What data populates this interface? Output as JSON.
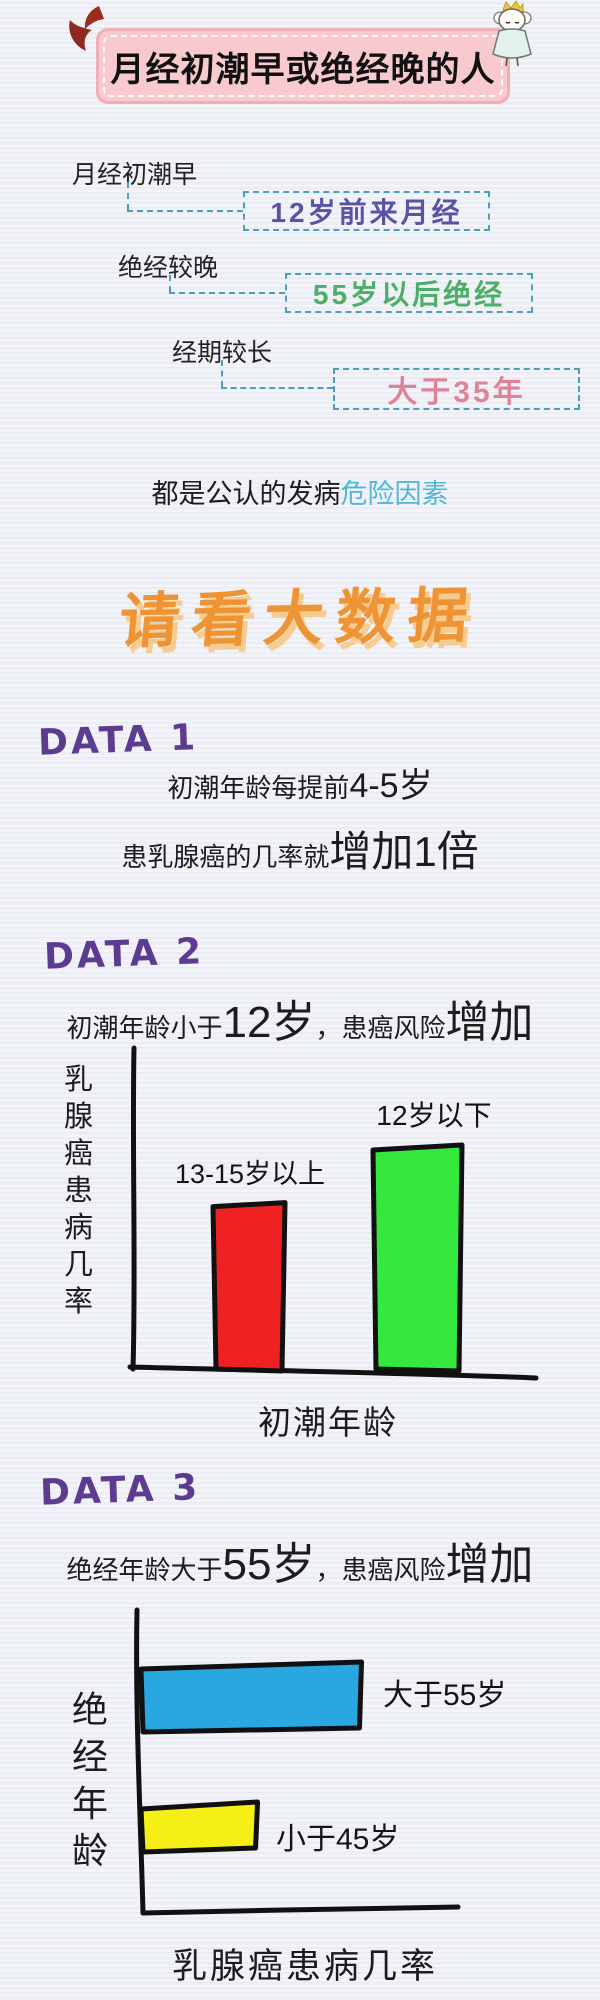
{
  "header": {
    "title": "月经初潮早或绝经晚的人",
    "left_icon": "devil-horns-icon",
    "right_icon": "princess-icon",
    "box_color": "#f8c9cd"
  },
  "risk": {
    "items": [
      {
        "label": "月经初潮早",
        "value": "12岁前来月经",
        "color": "#5b52a5"
      },
      {
        "label": "绝经较晚",
        "value": "55岁以后绝经",
        "color": "#4cae68"
      },
      {
        "label": "经期较长",
        "value": "大于35年",
        "color": "#df8498"
      }
    ],
    "dashed_border_color": "#4b9fb8"
  },
  "consensus": {
    "normal": "都是公认的发病",
    "highlight": "危险因素",
    "highlight_color": "#52b6d8"
  },
  "big_data_title": "请看大数据",
  "big_data_color": "#ef9434",
  "data1": {
    "heading": "DATA 1",
    "line1": {
      "normal": "初潮年龄每提前",
      "big": "4-5岁"
    },
    "line2": {
      "normal": "患乳腺癌的几率就",
      "big": "增加1倍"
    }
  },
  "data2": {
    "heading": "DATA 2",
    "line": {
      "normal1": "初潮年龄小于",
      "big1": "12岁",
      "normal2": "，患癌风险",
      "big2": "增加"
    }
  },
  "data3": {
    "heading": "DATA 3",
    "line": {
      "normal1": "绝经年龄大于",
      "big1": "55岁",
      "normal2": "，患癌风险",
      "big2": "增加"
    }
  },
  "heading_color": "#5c3b91",
  "chart_data": [
    {
      "type": "bar",
      "orientation": "vertical",
      "title": "初潮年龄小于12岁，患癌风险增加",
      "categories": [
        "13-15岁以上",
        "12岁以下"
      ],
      "values": [
        0.52,
        0.7
      ],
      "colors": [
        "#ee2222",
        "#35e83e"
      ],
      "xlabel": "初潮年龄",
      "ylabel": "乳腺癌患病几率",
      "ylim": [
        0,
        1
      ],
      "grid": false,
      "note": "hand-drawn chart, no numeric scale; values are relative bar heights"
    },
    {
      "type": "bar",
      "orientation": "horizontal",
      "title": "绝经年龄大于55岁，患癌风险增加",
      "categories": [
        "大于55岁",
        "小于45岁"
      ],
      "values": [
        0.7,
        0.37
      ],
      "colors": [
        "#29a7e1",
        "#f6ef17"
      ],
      "xlabel": "乳腺癌患病几率",
      "ylabel": "绝经年龄",
      "xlim": [
        0,
        1
      ],
      "grid": false,
      "note": "hand-drawn chart, no numeric scale; values are relative bar lengths"
    }
  ]
}
